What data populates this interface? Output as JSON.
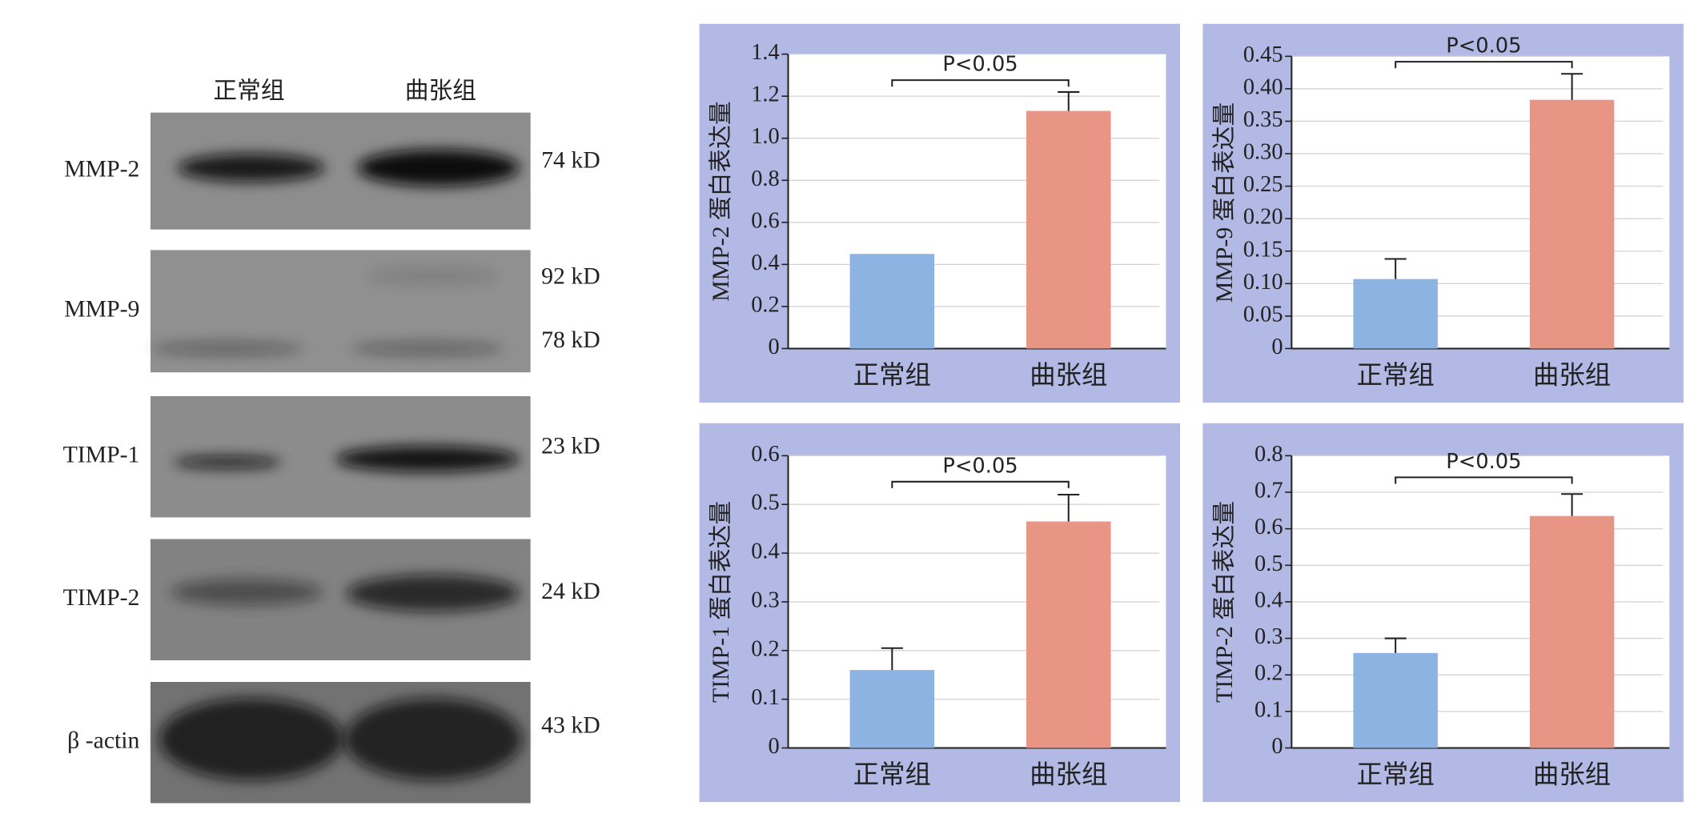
{
  "blot": {
    "lanes": [
      "正常组",
      "曲张组"
    ],
    "rows": [
      {
        "label": "MMP-2",
        "sizes": [
          "74 kD"
        ]
      },
      {
        "label": "MMP-9",
        "sizes": [
          "92 kD",
          "78 kD"
        ]
      },
      {
        "label": "TIMP-1",
        "sizes": [
          "23 kD"
        ]
      },
      {
        "label": "TIMP-2",
        "sizes": [
          "24 kD"
        ]
      },
      {
        "label": "β -actin",
        "sizes": [
          "43 kD"
        ]
      }
    ]
  },
  "chart_data": [
    {
      "type": "bar",
      "ylabel": "MMP-2 蛋白表达量",
      "annotation": "P<0.05",
      "categories": [
        "正常组",
        "曲张组"
      ],
      "values": [
        0.45,
        1.13
      ],
      "errors": [
        null,
        0.09
      ],
      "colors": [
        "#8db3e2",
        "#e89585"
      ],
      "ylim": [
        0,
        1.4
      ],
      "yticks": [
        0,
        0.2,
        0.4,
        0.6,
        0.8,
        {
          "value": 1,
          "label": "1.0"
        },
        1.2,
        1.4
      ],
      "grid": true
    },
    {
      "type": "bar",
      "ylabel": "MMP-9 蛋白表达量",
      "annotation": "P<0.05",
      "categories": [
        "正常组",
        "曲张组"
      ],
      "values": [
        0.107,
        0.383
      ],
      "errors": [
        0.031,
        0.04
      ],
      "colors": [
        "#8db3e2",
        "#e89585"
      ],
      "ylim": [
        0,
        0.45
      ],
      "yticks": [
        0,
        0.05,
        {
          "value": 0.1,
          "label": "0.10"
        },
        0.15,
        {
          "value": 0.2,
          "label": "0.20"
        },
        0.25,
        {
          "value": 0.3,
          "label": "0.30"
        },
        0.35,
        {
          "value": 0.4,
          "label": "0.40"
        },
        0.45
      ],
      "grid": true
    },
    {
      "type": "bar",
      "ylabel": "TIMP-1 蛋白表达量",
      "annotation": "P<0.05",
      "categories": [
        "正常组",
        "曲张组"
      ],
      "values": [
        0.16,
        0.465
      ],
      "errors": [
        0.045,
        0.055
      ],
      "colors": [
        "#8db3e2",
        "#e89585"
      ],
      "ylim": [
        0,
        0.6
      ],
      "yticks": [
        0,
        0.1,
        0.2,
        0.3,
        0.4,
        0.5,
        0.6
      ],
      "grid": true
    },
    {
      "type": "bar",
      "ylabel": "TIMP-2 蛋白表达量",
      "annotation": "P<0.05",
      "categories": [
        "正常组",
        "曲张组"
      ],
      "values": [
        0.26,
        0.635
      ],
      "errors": [
        0.04,
        0.06
      ],
      "colors": [
        "#8db3e2",
        "#e89585"
      ],
      "ylim": [
        0,
        0.8
      ],
      "yticks": [
        0,
        0.1,
        0.2,
        0.3,
        0.4,
        0.5,
        0.6,
        0.7,
        0.8
      ],
      "grid": true
    }
  ]
}
